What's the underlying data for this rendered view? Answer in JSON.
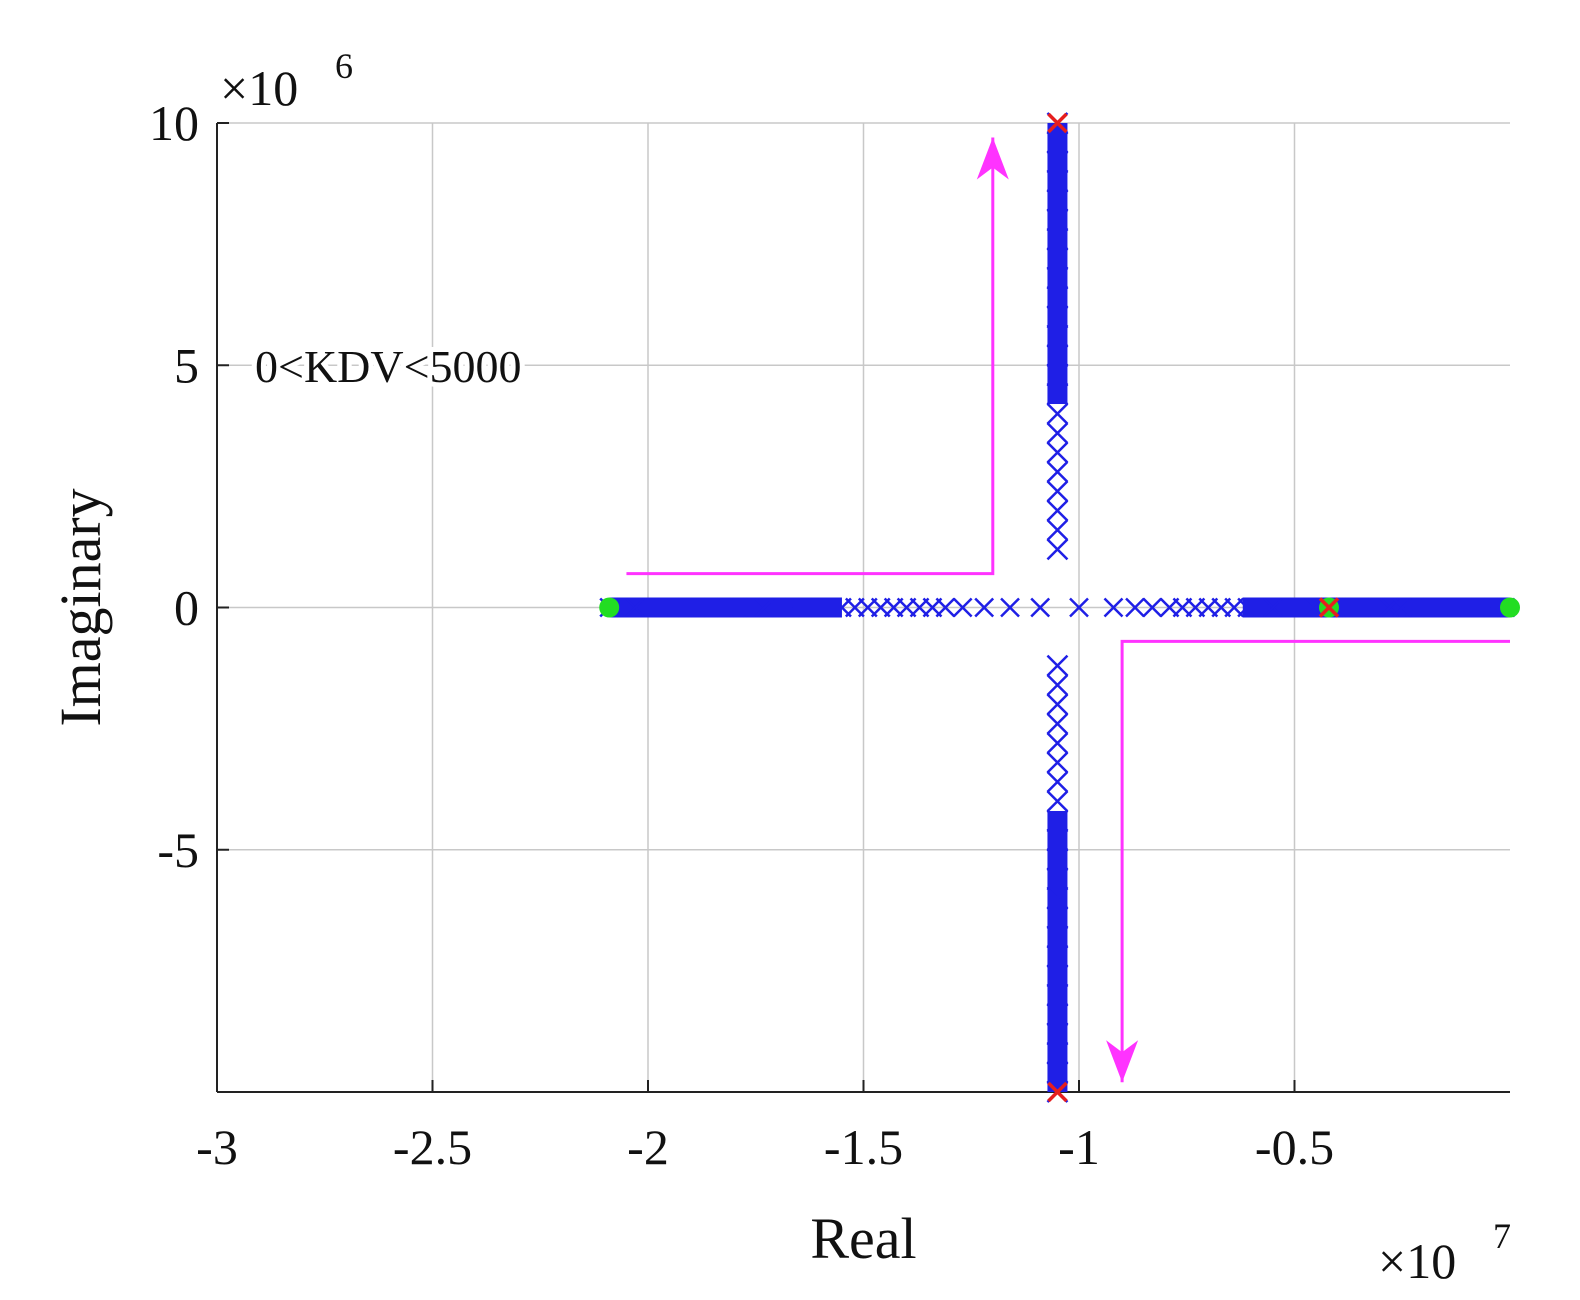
{
  "chart_data": {
    "type": "scatter",
    "title": "",
    "xlabel": "Real",
    "ylabel": "Imaginary",
    "x_exponent_label": "×10",
    "x_exponent_power": "7",
    "y_exponent_label": "×10",
    "y_exponent_power": "6",
    "x_scale": 10000000,
    "y_scale": 1000000,
    "xlim": [
      -3,
      0
    ],
    "ylim": [
      -10,
      10
    ],
    "xticks": [
      -3,
      -2.5,
      -2,
      -1.5,
      -1,
      -0.5
    ],
    "xtick_labels": [
      "-3",
      "-2.5",
      "-2",
      "-1.5",
      "-1",
      "-0.5"
    ],
    "yticks": [
      10,
      5,
      0,
      -5
    ],
    "ytick_labels": [
      "10",
      "5",
      "0",
      "-5"
    ],
    "grid": true,
    "annotation": "0<KDV<5000",
    "colors": {
      "locus": "#1f1fe6",
      "open_loop_pole": "#e61e1e",
      "zero": "#22dd22",
      "arrow": "#ff33ff",
      "grid": "#c8c8c8",
      "axis": "#222222"
    },
    "series": [
      {
        "marker": "x",
        "real_axis_branch": {
          "x": [
            -2.09,
            -2.06,
            -2.03,
            -2.0,
            -1.97,
            -1.94,
            -1.91,
            -1.88,
            -1.85,
            -1.82,
            -1.79,
            -1.76,
            -1.73,
            -1.7,
            -1.67,
            -1.64,
            -1.61,
            -1.58,
            -1.55,
            -1.52,
            -1.49,
            -1.46,
            -1.43,
            -1.4,
            -1.37,
            -1.34,
            -1.31,
            -1.27,
            -1.22,
            -1.16,
            -1.09,
            -1.0,
            -0.92,
            -0.87,
            -0.83,
            -0.79,
            -0.76,
            -0.73,
            -0.7,
            -0.67,
            -0.64,
            -0.61,
            -0.58,
            -0.55,
            -0.52,
            -0.49,
            -0.46,
            -0.43,
            -0.4,
            -0.37,
            -0.34,
            -0.31,
            -0.28,
            -0.25,
            -0.22,
            -0.19,
            -0.16,
            -0.13,
            -0.1,
            -0.07,
            -0.04,
            -0.01
          ],
          "y": 0
        },
        "vertical_branch": {
          "x": -1.05,
          "y": [
            10.0,
            9.6,
            9.2,
            8.8,
            8.4,
            8.0,
            7.6,
            7.2,
            6.8,
            6.4,
            6.0,
            5.6,
            5.2,
            4.8,
            4.4,
            4.0,
            3.6,
            3.2,
            2.8,
            2.4,
            2.0,
            1.6,
            1.2,
            -1.2,
            -1.6,
            -2.0,
            -2.4,
            -2.8,
            -3.2,
            -3.6,
            -4.0,
            -4.4,
            -4.8,
            -5.2,
            -5.6,
            -6.0,
            -6.4,
            -6.8,
            -7.2,
            -7.6,
            -8.0,
            -8.4,
            -8.8,
            -9.2,
            -9.6,
            -10.0
          ]
        }
      }
    ],
    "open_loop_poles": [
      {
        "x": -1.05,
        "y": 10
      },
      {
        "x": -1.05,
        "y": -10
      },
      {
        "x": -0.42,
        "y": 0
      }
    ],
    "zeros": [
      {
        "x": -2.09,
        "y": 0
      },
      {
        "x": -0.42,
        "y": 0
      },
      {
        "x": 0.0,
        "y": 0
      }
    ],
    "direction_arrows": [
      {
        "points": [
          [
            -2.05,
            0.7
          ],
          [
            -1.2,
            0.7
          ],
          [
            -1.2,
            9.7
          ]
        ]
      },
      {
        "points": [
          [
            0.0,
            -0.7
          ],
          [
            -0.9,
            -0.7
          ],
          [
            -0.9,
            -9.8
          ]
        ]
      }
    ]
  }
}
